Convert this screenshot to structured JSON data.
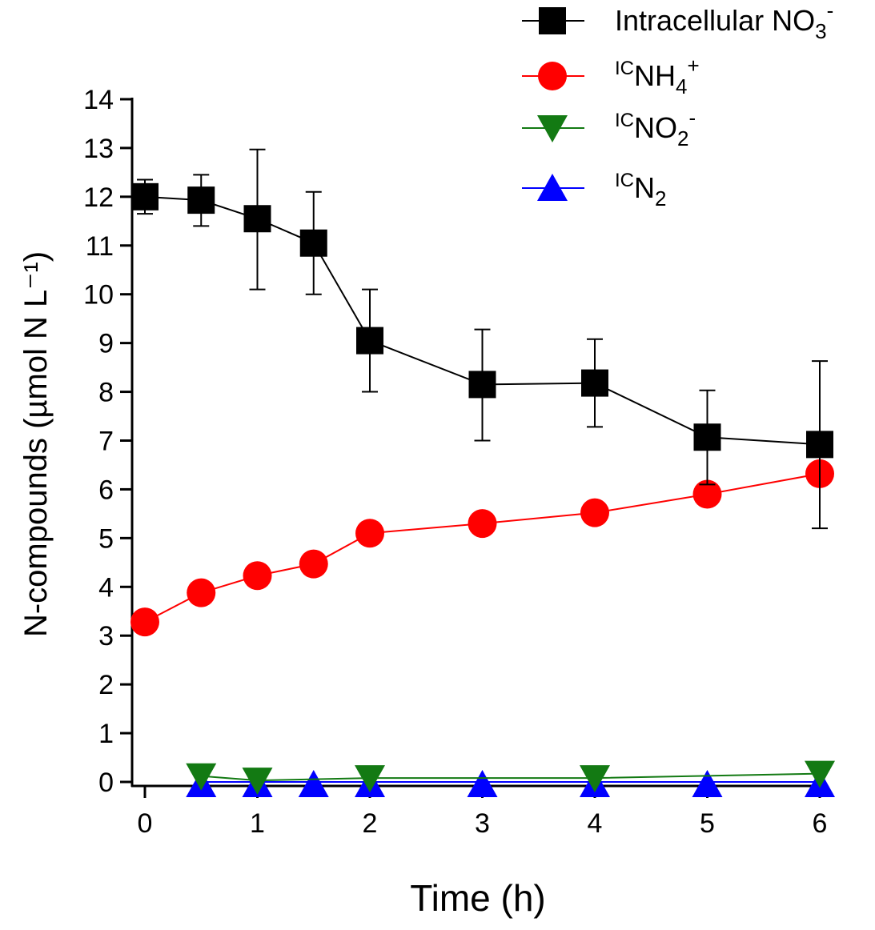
{
  "chart_data": {
    "type": "line",
    "title": "",
    "xlabel": "Time (h)",
    "ylabel": "N-compounds (µmol N L⁻¹)",
    "xlim": [
      0,
      6
    ],
    "ylim": [
      0,
      14
    ],
    "xticks": [
      "0",
      "1",
      "2",
      "3",
      "4",
      "5",
      "6"
    ],
    "yticks": [
      "0",
      "1",
      "2",
      "3",
      "4",
      "5",
      "6",
      "7",
      "8",
      "9",
      "10",
      "11",
      "12",
      "13",
      "14"
    ],
    "grid": false,
    "legend_position": "top-right",
    "series": [
      {
        "name": "Intracellular NO3-",
        "legend": {
          "main": "Intracellular NO",
          "sub": "3",
          "sup": "-",
          "pre": ""
        },
        "color": "#000000",
        "marker": "square",
        "x": [
          0,
          0.5,
          1,
          1.5,
          2,
          3,
          4,
          5,
          6
        ],
        "y": [
          12.0,
          11.93,
          11.55,
          11.05,
          9.05,
          8.15,
          8.18,
          7.07,
          6.92
        ],
        "err_low": [
          11.65,
          11.4,
          10.1,
          10.0,
          8.0,
          7.0,
          7.28,
          6.1,
          5.2
        ],
        "err_high": [
          12.35,
          12.45,
          12.97,
          12.1,
          10.1,
          9.28,
          9.08,
          8.03,
          8.63
        ]
      },
      {
        "name": "ICNH4+",
        "legend": {
          "pre": "IC",
          "main": "NH",
          "sub": "4",
          "sup": "+"
        },
        "color": "#ff0000",
        "marker": "circle",
        "x": [
          0,
          0.5,
          1,
          1.5,
          2,
          3,
          4,
          5,
          6
        ],
        "y": [
          3.28,
          3.88,
          4.23,
          4.47,
          5.1,
          5.3,
          5.52,
          5.9,
          6.32
        ]
      },
      {
        "name": "ICNO2-",
        "legend": {
          "pre": "IC",
          "main": "NO",
          "sub": "2",
          "sup": "-"
        },
        "color": "#137a13",
        "marker": "triangle-down",
        "x": [
          0.5,
          1,
          2,
          4,
          6
        ],
        "y": [
          0.12,
          0.03,
          0.08,
          0.08,
          0.17
        ]
      },
      {
        "name": "ICN2",
        "legend": {
          "pre": "IC",
          "main": "N",
          "sub": "2",
          "sup": ""
        },
        "color": "#0000ff",
        "marker": "triangle-up",
        "x": [
          0.5,
          1,
          1.5,
          2,
          3,
          4,
          5,
          6
        ],
        "y": [
          0,
          0,
          0,
          0,
          0,
          0,
          0,
          0
        ]
      }
    ]
  }
}
